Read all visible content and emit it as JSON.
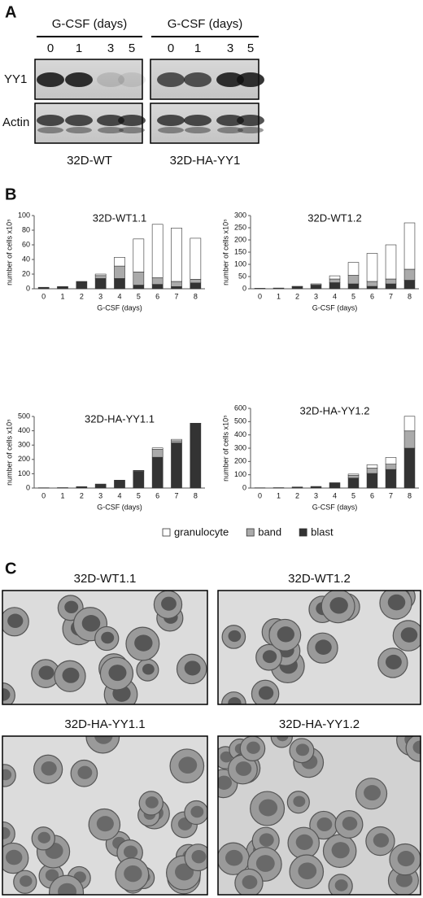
{
  "panel_a": {
    "label": "A",
    "headers": [
      "G-CSF (days)",
      "G-CSF (days)"
    ],
    "lanes": [
      [
        "0",
        "1",
        "3",
        "5"
      ],
      [
        "0",
        "1",
        "3",
        "5"
      ]
    ],
    "rows": [
      "YY1",
      "Actin"
    ],
    "cell_lines": [
      "32D-WT",
      "32D-HA-YY1"
    ]
  },
  "panel_b": {
    "label": "B"
  },
  "chart_data": [
    {
      "type": "bar",
      "stacked": true,
      "title": "32D-WT1.1",
      "x_label": "G-CSF (days)",
      "y_label": "number of cells x10⁵",
      "categories": [
        "0",
        "1",
        "2",
        "3",
        "4",
        "5",
        "6",
        "7",
        "8"
      ],
      "series": [
        {
          "name": "blast",
          "color": "#333333",
          "values": [
            2,
            3,
            10,
            14,
            14,
            5,
            6,
            3,
            8
          ]
        },
        {
          "name": "band",
          "color": "#aaaaaa",
          "values": [
            0,
            0,
            0,
            4,
            17,
            18,
            9,
            7,
            5
          ]
        },
        {
          "name": "granulocyte",
          "color": "#ffffff",
          "values": [
            0,
            0,
            0,
            2,
            12,
            45,
            73,
            73,
            56
          ]
        }
      ],
      "ylim": [
        0,
        100
      ],
      "yticks": [
        0,
        20,
        40,
        60,
        80,
        100
      ]
    },
    {
      "type": "bar",
      "stacked": true,
      "title": "32D-WT1.2",
      "x_label": "G-CSF (days)",
      "y_label": "number of cells x10⁵",
      "categories": [
        "0",
        "1",
        "2",
        "3",
        "4",
        "5",
        "6",
        "7",
        "8"
      ],
      "series": [
        {
          "name": "blast",
          "color": "#333333",
          "values": [
            2,
            3,
            8,
            15,
            25,
            20,
            10,
            20,
            35
          ]
        },
        {
          "name": "band",
          "color": "#aaaaaa",
          "values": [
            0,
            0,
            2,
            5,
            15,
            35,
            20,
            20,
            45
          ]
        },
        {
          "name": "granulocyte",
          "color": "#ffffff",
          "values": [
            0,
            0,
            0,
            0,
            13,
            53,
            115,
            140,
            190
          ]
        }
      ],
      "ylim": [
        0,
        300
      ],
      "yticks": [
        0,
        50,
        100,
        150,
        200,
        250,
        300
      ]
    },
    {
      "type": "bar",
      "stacked": true,
      "title": "32D-HA-YY1.1",
      "x_label": "G-CSF (days)",
      "y_label": "number of cells x10⁵",
      "categories": [
        "0",
        "1",
        "2",
        "3",
        "4",
        "5",
        "6",
        "7",
        "8"
      ],
      "series": [
        {
          "name": "blast",
          "color": "#333333",
          "values": [
            2,
            3,
            10,
            28,
            55,
            115,
            215,
            315,
            450
          ]
        },
        {
          "name": "band",
          "color": "#aaaaaa",
          "values": [
            0,
            0,
            0,
            0,
            0,
            5,
            55,
            15,
            0
          ]
        },
        {
          "name": "granulocyte",
          "color": "#ffffff",
          "values": [
            0,
            0,
            0,
            0,
            0,
            3,
            10,
            10,
            3
          ]
        }
      ],
      "ylim": [
        0,
        500
      ],
      "yticks": [
        0,
        100,
        200,
        300,
        400,
        500
      ]
    },
    {
      "type": "bar",
      "stacked": true,
      "title": "32D-HA-YY1.2",
      "x_label": "G-CSF (days)",
      "y_label": "number of cells x10⁵",
      "categories": [
        "0",
        "1",
        "2",
        "3",
        "4",
        "5",
        "6",
        "7",
        "8"
      ],
      "series": [
        {
          "name": "blast",
          "color": "#333333",
          "values": [
            2,
            3,
            8,
            12,
            40,
            75,
            110,
            140,
            300
          ]
        },
        {
          "name": "band",
          "color": "#aaaaaa",
          "values": [
            0,
            0,
            0,
            0,
            0,
            20,
            40,
            40,
            130
          ]
        },
        {
          "name": "granulocyte",
          "color": "#ffffff",
          "values": [
            0,
            0,
            0,
            0,
            0,
            10,
            25,
            50,
            110
          ]
        }
      ],
      "ylim": [
        0,
        600
      ],
      "yticks": [
        0,
        100,
        200,
        300,
        400,
        500,
        600
      ]
    }
  ],
  "panel_c": {
    "label": "C",
    "images": [
      "32D-WT1.1",
      "32D-WT1.2",
      "32D-HA-YY1.1",
      "32D-HA-YY1.2"
    ]
  }
}
